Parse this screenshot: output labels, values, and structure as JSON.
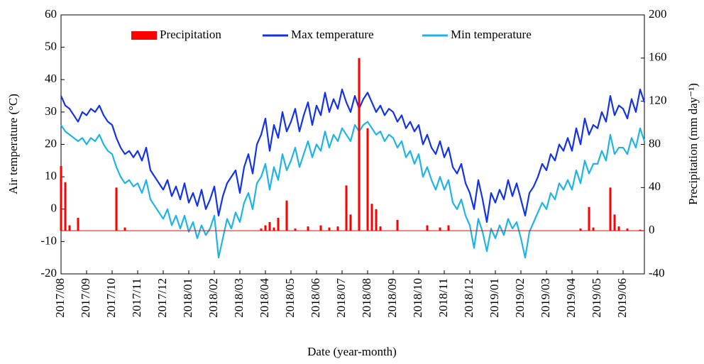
{
  "chart_data": {
    "type": "line",
    "xlabel": "Date (year-month)",
    "ylabel": "Air temperature (°C)",
    "y2label": "Precipitation (mm day⁻¹)",
    "ylim": [
      -20,
      60
    ],
    "yticks": [
      -20,
      -10,
      0,
      10,
      20,
      30,
      40,
      50,
      60
    ],
    "y2lim": [
      -40,
      200
    ],
    "y2ticks": [
      -40,
      0,
      40,
      80,
      120,
      160,
      200
    ],
    "legend": "top",
    "categories": [
      "2017/08",
      null,
      null,
      null,
      null,
      null,
      "2017/09",
      null,
      null,
      null,
      null,
      null,
      "2017/10",
      null,
      null,
      null,
      null,
      null,
      "2017/11",
      null,
      null,
      null,
      null,
      null,
      "2017/12",
      null,
      null,
      null,
      null,
      null,
      "2018/01",
      null,
      null,
      null,
      null,
      null,
      "2018/02",
      null,
      null,
      null,
      null,
      null,
      "2018/03",
      null,
      null,
      null,
      null,
      null,
      "2018/04",
      null,
      null,
      null,
      null,
      null,
      "2018/05",
      null,
      null,
      null,
      null,
      null,
      "2018/06",
      null,
      null,
      null,
      null,
      null,
      "2018/07",
      null,
      null,
      null,
      null,
      null,
      "2018/08",
      null,
      null,
      null,
      null,
      null,
      "2018/09",
      null,
      null,
      null,
      null,
      null,
      "2018/10",
      null,
      null,
      null,
      null,
      null,
      "2018/11",
      null,
      null,
      null,
      null,
      null,
      "2018/12",
      null,
      null,
      null,
      null,
      null,
      "2019/01",
      null,
      null,
      null,
      null,
      null,
      "2019/02",
      null,
      null,
      null,
      null,
      null,
      "2019/03",
      null,
      null,
      null,
      null,
      null,
      "2019/04",
      null,
      null,
      null,
      null,
      null,
      "2019/05",
      null,
      null,
      null,
      null,
      null,
      "2019/06",
      null,
      null,
      null,
      null,
      null
    ],
    "series": [
      {
        "name": "Precipitation",
        "type": "bar",
        "axis": "y2",
        "color": "#ff0000",
        "values": [
          60,
          45,
          5,
          0,
          12,
          0,
          0,
          0,
          0,
          0,
          0,
          0,
          0,
          40,
          0,
          3,
          0,
          0,
          0,
          0,
          0,
          0,
          0,
          0,
          0,
          0,
          0,
          0,
          0,
          0,
          0,
          0,
          0,
          0,
          0,
          0,
          0,
          0,
          0,
          0,
          0,
          0,
          0,
          0,
          0,
          0,
          0,
          2,
          5,
          8,
          3,
          12,
          0,
          28,
          0,
          2,
          0,
          0,
          4,
          0,
          0,
          5,
          0,
          3,
          0,
          4,
          0,
          42,
          15,
          0,
          160,
          0,
          95,
          25,
          20,
          4,
          0,
          0,
          0,
          10,
          0,
          0,
          0,
          0,
          0,
          0,
          5,
          0,
          0,
          3,
          0,
          5,
          0,
          0,
          0,
          0,
          0,
          0,
          0,
          0,
          0,
          0,
          0,
          0,
          0,
          0,
          0,
          0,
          0,
          0,
          0,
          0,
          0,
          0,
          0,
          0,
          0,
          0,
          0,
          0,
          0,
          0,
          2,
          0,
          22,
          3,
          0,
          0,
          0,
          40,
          15,
          4,
          0,
          2,
          0,
          0,
          1,
          0
        ]
      },
      {
        "name": "Max temperature",
        "type": "line",
        "color": "#1432e6",
        "values": [
          35,
          32,
          31,
          29,
          27,
          30,
          29,
          31,
          30,
          32,
          29,
          27,
          26,
          22,
          19,
          17,
          18,
          16,
          18,
          15,
          19,
          12,
          10,
          8,
          6,
          9,
          4,
          7,
          3,
          8,
          2,
          5,
          1,
          6,
          0,
          3,
          7,
          -2,
          4,
          8,
          10,
          12,
          5,
          13,
          17,
          11,
          20,
          23,
          28,
          18,
          26,
          22,
          30,
          24,
          27,
          31,
          24,
          29,
          33,
          26,
          32,
          29,
          36,
          30,
          34,
          31,
          37,
          33,
          30,
          35,
          31,
          34,
          36,
          33,
          30,
          32,
          29,
          31,
          30,
          27,
          29,
          25,
          27,
          24,
          26,
          20,
          23,
          19,
          17,
          21,
          16,
          19,
          13,
          11,
          14,
          8,
          5,
          0,
          9,
          3,
          -4,
          5,
          2,
          6,
          3,
          9,
          4,
          8,
          3,
          -2,
          5,
          7,
          10,
          14,
          12,
          17,
          15,
          20,
          18,
          22,
          18,
          25,
          20,
          28,
          23,
          26,
          25,
          30,
          27,
          35,
          29,
          32,
          31,
          28,
          34,
          30,
          37,
          33
        ]
      },
      {
        "name": "Min temperature",
        "type": "line",
        "color": "#1eb4e6",
        "values": [
          26,
          24,
          23,
          22,
          21,
          22,
          20,
          22,
          21,
          23,
          20,
          18,
          17,
          13,
          10,
          8,
          9,
          7,
          8,
          5,
          9,
          3,
          1,
          -1,
          -3,
          0,
          -5,
          -2,
          -6,
          -2,
          -7,
          -4,
          -9,
          -5,
          -8,
          -6,
          -2,
          -15,
          -9,
          -3,
          -6,
          -1,
          -4,
          2,
          5,
          0,
          8,
          10,
          14,
          6,
          13,
          9,
          17,
          12,
          15,
          19,
          13,
          17,
          21,
          16,
          20,
          18,
          24,
          19,
          23,
          21,
          25,
          23,
          21,
          26,
          24,
          26,
          27,
          25,
          23,
          24,
          21,
          23,
          22,
          19,
          21,
          16,
          18,
          14,
          17,
          10,
          13,
          9,
          6,
          10,
          6,
          9,
          2,
          0,
          3,
          -2,
          -5,
          -12,
          -3,
          -7,
          -13,
          -6,
          -9,
          -5,
          -8,
          -3,
          -6,
          -4,
          -9,
          -15,
          -7,
          -4,
          -1,
          2,
          0,
          5,
          3,
          8,
          6,
          9,
          6,
          12,
          8,
          15,
          11,
          14,
          14,
          18,
          15,
          23,
          17,
          19,
          19,
          17,
          22,
          19,
          25,
          21
        ]
      }
    ]
  }
}
